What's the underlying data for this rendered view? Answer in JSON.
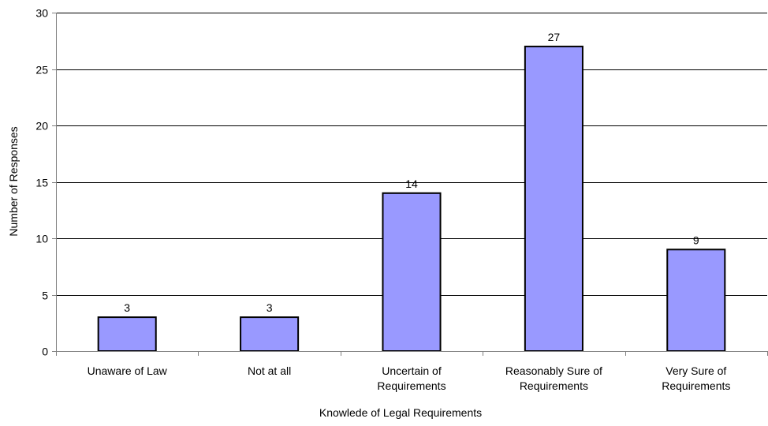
{
  "chart_data": {
    "type": "bar",
    "title": "",
    "xlabel": "Knowlede of Legal Requirements",
    "ylabel": "Number of Responses",
    "ylim": [
      0,
      30
    ],
    "yticks": [
      0,
      5,
      10,
      15,
      20,
      25,
      30
    ],
    "grid": true,
    "legend": "none",
    "categories": [
      [
        "Unaware of Law"
      ],
      [
        "Not at all"
      ],
      [
        "Uncertain of",
        "Requirements"
      ],
      [
        "Reasonably Sure of",
        "Requirements"
      ],
      [
        "Very Sure of",
        "Requirements"
      ]
    ],
    "values": [
      3,
      3,
      14,
      27,
      9
    ],
    "data_labels": [
      "3",
      "3",
      "14",
      "27",
      "9"
    ],
    "colors": {
      "bar_fill": "#9999ff",
      "bar_stroke": "#000000",
      "grid": "#000000",
      "axis": "#808080",
      "text": "#000000"
    }
  }
}
